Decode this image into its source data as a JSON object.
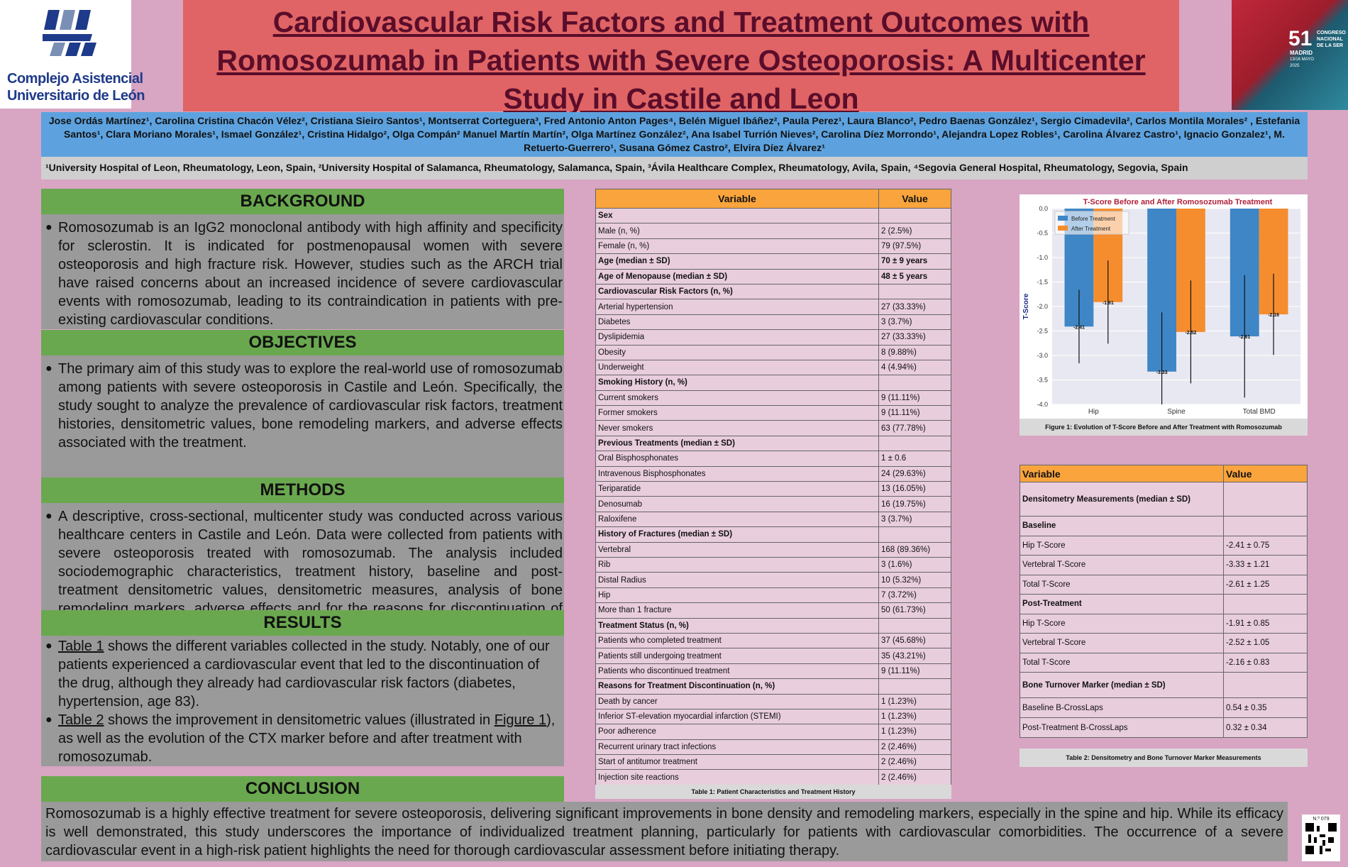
{
  "logo_left": {
    "line1": "Complejo Asistencial",
    "line2": "Universitario de León"
  },
  "logo_right": {
    "number": "51",
    "line1": "CONGRESO",
    "line2": "NACIONAL",
    "line3": "DE LA SER",
    "city": "MADRID",
    "dates": "13/16 MAYO",
    "year": "2025"
  },
  "title": "Cardiovascular Risk Factors and Treatment Outcomes with Romosozumab in Patients with Severe Osteoporosis: A Multicenter Study in Castile and Leon",
  "authors": "Jose Ordás Martínez¹, Carolina Cristina Chacón Vélez², Cristiana Sieiro Santos¹, Montserrat Corteguera³, Fred Antonio Anton Pages⁴, Belén Miguel Ibáñez², Paula Perez¹, Laura Blanco², Pedro Baenas González¹, Sergio Cimadevila², Carlos Montila Morales² , Estefania Santos¹, Clara Moriano Morales¹, Ismael González¹, Cristina Hidalgo², Olga Compán² Manuel Martín Martín², Olga Martínez González², Ana Isabel Turrión Nieves², Carolina Díez Morrondo¹, Alejandra Lopez Robles¹, Carolina Álvarez Castro¹, Ignacio Gonzalez¹, M. Retuerto-Guerrero¹, Susana Gómez Castro², Elvira Díez Álvarez¹",
  "affiliations": "¹University Hospital of Leon, Rheumatology, Leon, Spain, ²University Hospital of Salamanca, Rheumatology, Salamanca, Spain, ³Ávila Healthcare Complex, Rheumatology, Avila, Spain, ⁴Segovia General Hospital, Rheumatology, Segovia, Spain",
  "background": {
    "heading": "BACKGROUND",
    "text": "Romosozumab is an IgG2 monoclonal antibody with high affinity and specificity for sclerostin. It is indicated for postmenopausal women with severe osteoporosis and high fracture risk. However, studies such as the ARCH trial have raised concerns about an increased incidence of severe cardiovascular events with romosozumab, leading to its contraindication in patients with pre-existing cardiovascular conditions."
  },
  "objectives": {
    "heading": "OBJECTIVES",
    "text": "The primary aim of this study was to explore the real-world use of romosozumab among patients with severe osteoporosis in Castile and León. Specifically, the study sought to analyze the prevalence of cardiovascular risk factors, treatment histories, densitometric values, bone remodeling markers, and adverse effects associated with the treatment."
  },
  "methods": {
    "heading": "METHODS",
    "text": "A descriptive, cross-sectional, multicenter study was conducted across various healthcare centers in Castile and León. Data were collected from patients with severe osteoporosis treated with romosozumab. The analysis included sociodemographic characteristics, treatment history, baseline and post-treatment densitometric values, densitometric measures, analysis of bone remodeling markers, adverse effects and for the reasons for discontinuation of treatment."
  },
  "results": {
    "heading": "RESULTS",
    "b1_link": "Table 1",
    "b1_text": " shows the different variables collected in the study. Notably, one of our patients experienced a cardiovascular event that led to the discontinuation of the drug, although they already had cardiovascular risk factors (diabetes, hypertension, age 83).",
    "b2_link": "Table 2",
    "b2_text_a": " shows the improvement in densitometric values (illustrated in ",
    "b2_link2": "Figure 1",
    "b2_text_b": "), as well as the evolution of the CTX marker before and after treatment with romosozumab."
  },
  "conclusion": {
    "heading": "CONCLUSION",
    "text": "Romosozumab is a highly effective treatment for severe osteoporosis, delivering significant improvements in bone density and remodeling markers, especially in the spine and hip. While its efficacy is well demonstrated, this study underscores the importance of individualized treatment planning, particularly for patients with cardiovascular comorbidities. The occurrence of a severe cardiovascular event in a high-risk patient highlights the need for thorough cardiovascular assessment before initiating therapy."
  },
  "table1": {
    "headers": [
      "Variable",
      "Value"
    ],
    "rows": [
      [
        "Sex",
        "",
        true
      ],
      [
        "Male (n, %)",
        "2 (2.5%)",
        false
      ],
      [
        "Female (n, %)",
        "79 (97.5%)",
        false
      ],
      [
        "Age (median ± SD)",
        "70 ± 9 years",
        true
      ],
      [
        "Age of Menopause (median ± SD)",
        "48 ± 5 years",
        true
      ],
      [
        "Cardiovascular Risk Factors (n, %)",
        "",
        true
      ],
      [
        "Arterial hypertension",
        "27 (33.33%)",
        false
      ],
      [
        "Diabetes",
        "3 (3.7%)",
        false
      ],
      [
        "Dyslipidemia",
        "27 (33.33%)",
        false
      ],
      [
        "Obesity",
        "8 (9.88%)",
        false
      ],
      [
        "Underweight",
        "4 (4.94%)",
        false
      ],
      [
        "Smoking History (n, %)",
        "",
        true
      ],
      [
        "Current smokers",
        "9 (11.11%)",
        false
      ],
      [
        "Former smokers",
        "9 (11.11%)",
        false
      ],
      [
        "Never smokers",
        "63 (77.78%)",
        false
      ],
      [
        "Previous Treatments (median ± SD)",
        "",
        true
      ],
      [
        "Oral Bisphosphonates",
        "1 ± 0.6",
        false
      ],
      [
        "Intravenous Bisphosphonates",
        "24 (29.63%)",
        false
      ],
      [
        "Teriparatide",
        "13 (16.05%)",
        false
      ],
      [
        "Denosumab",
        "16 (19.75%)",
        false
      ],
      [
        "Raloxifene",
        "3 (3.7%)",
        false
      ],
      [
        "History of Fractures (median ± SD)",
        "",
        true
      ],
      [
        "Vertebral",
        "168 (89.36%)",
        false
      ],
      [
        "Rib",
        "3 (1.6%)",
        false
      ],
      [
        "Distal Radius",
        "10 (5.32%)",
        false
      ],
      [
        "Hip",
        "7 (3.72%)",
        false
      ],
      [
        "More than 1 fracture",
        "50 (61.73%)",
        false
      ],
      [
        "Treatment Status (n, %)",
        "",
        true
      ],
      [
        "Patients who completed treatment",
        "37 (45.68%)",
        false
      ],
      [
        "Patients still undergoing treatment",
        "35 (43.21%)",
        false
      ],
      [
        "Patients who discontinued treatment",
        "9 (11.11%)",
        false
      ],
      [
        "Reasons for Treatment Discontinuation (n, %)",
        "",
        true
      ],
      [
        "Death by cancer",
        "1 (1.23%)",
        false
      ],
      [
        "Inferior ST-elevation myocardial infarction (STEMI)",
        "1 (1.23%)",
        false
      ],
      [
        "Poor adherence",
        "1 (1.23%)",
        false
      ],
      [
        "Recurrent urinary tract infections",
        "2 (2.46%)",
        false
      ],
      [
        "Start of antitumor treatment",
        "2 (2.46%)",
        false
      ],
      [
        "Injection site reactions",
        "2 (2.46%)",
        false
      ]
    ],
    "caption": "Table 1: Patient Characteristics and Treatment History"
  },
  "table2": {
    "headers": [
      "Variable",
      "Value"
    ],
    "rows": [
      [
        "Densitometry Measurements (median ± SD)",
        "",
        true
      ],
      [
        "Baseline",
        "",
        true
      ],
      [
        "Hip T-Score",
        "-2.41 ± 0.75",
        false
      ],
      [
        "Vertebral T-Score",
        "-3.33 ± 1.21",
        false
      ],
      [
        "Total T-Score",
        "-2.61 ± 1.25",
        false
      ],
      [
        "Post-Treatment",
        "",
        true
      ],
      [
        "Hip T-Score",
        "-1.91 ± 0.85",
        false
      ],
      [
        "Vertebral T-Score",
        "-2.52 ± 1.05",
        false
      ],
      [
        "Total T-Score",
        "-2.16 ± 0.83",
        false
      ],
      [
        "Bone Turnover Marker (median ± SD)",
        "",
        true
      ],
      [
        "Baseline B-CrossLaps",
        "0.54 ± 0.35",
        false
      ],
      [
        "Post-Treatment B-CrossLaps",
        "0.32 ± 0.34",
        false
      ]
    ],
    "caption": "Table 2: Densitometry and Bone Turnover Marker Measurements"
  },
  "chart_data": {
    "type": "bar",
    "title": "T-Score Before and After Romosozumab Treatment",
    "ylabel": "T-Score",
    "xlabel": "",
    "categories": [
      "Hip",
      "Spine",
      "Total BMD"
    ],
    "series": [
      {
        "name": "Before Treatment",
        "values": [
          -2.41,
          -3.33,
          -2.61
        ],
        "errors": [
          0.75,
          1.21,
          1.25
        ],
        "color": "#3f86c6"
      },
      {
        "name": "After Treatment",
        "values": [
          -1.91,
          -2.52,
          -2.16
        ],
        "errors": [
          0.85,
          1.05,
          0.83
        ],
        "color": "#f58d2e"
      }
    ],
    "ylim": [
      -4.0,
      0.0
    ],
    "yticks": [
      0.0,
      -0.5,
      -1.0,
      -1.5,
      -2.0,
      -2.5,
      -3.0,
      -3.5,
      -4.0
    ],
    "legend": "top-left",
    "caption": "Figure 1: Evolution of T-Score Before and After Treatment with Romosozumab"
  },
  "qr": {
    "label": "N.º 079"
  }
}
